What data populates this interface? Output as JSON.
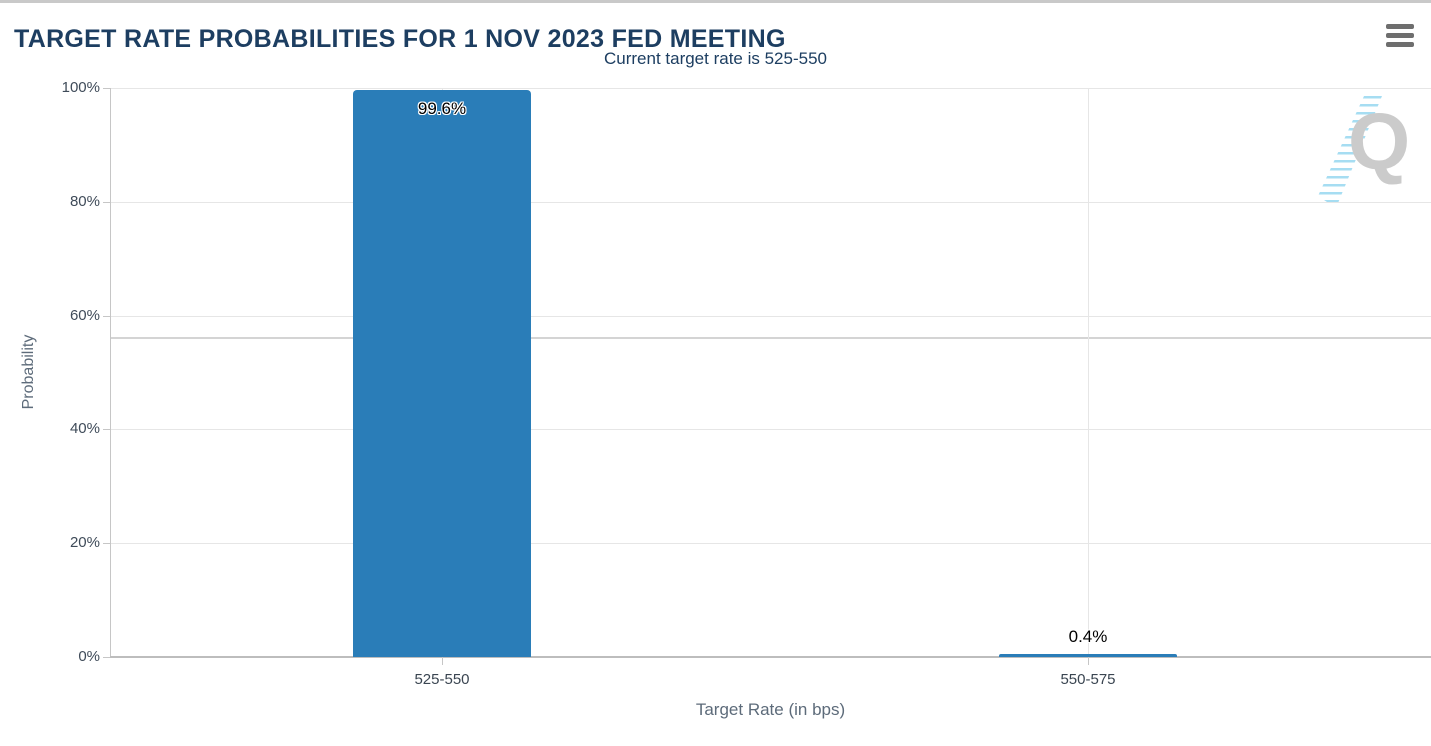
{
  "header": {
    "title": "TARGET RATE PROBABILITIES FOR 1 NOV 2023 FED MEETING",
    "menu_icon": "hamburger-menu"
  },
  "chart_data": {
    "type": "bar",
    "title": "TARGET RATE PROBABILITIES FOR 1 NOV 2023 FED MEETING",
    "subtitle": "Current target rate is 525-550",
    "categories": [
      "525-550",
      "550-575"
    ],
    "values": [
      99.6,
      0.4
    ],
    "value_labels": [
      "99.6%",
      "0.4%"
    ],
    "xlabel": "Target Rate (in bps)",
    "ylabel": "Probability",
    "ylim": [
      0,
      100
    ],
    "yticks": [
      0,
      20,
      40,
      60,
      80,
      100
    ],
    "ytick_labels": [
      "0%",
      "20%",
      "40%",
      "60%",
      "80%",
      "100%"
    ],
    "grid": true,
    "legend": false,
    "bar_color": "#2a7db8"
  },
  "watermark": {
    "letter": "Q",
    "name": "quikstrike-logo"
  },
  "colors": {
    "bar": "#2a7db8",
    "title_text": "#1d3e61",
    "axis_title_text": "#5d6b7a",
    "tick_label_text": "#3f4b59",
    "gridline": "#e6e6e6",
    "axis_line": "#c6c6c6",
    "top_strip": "#c9c9c9",
    "menu_icon": "#6e6e6e",
    "watermark_gray": "#cbcbcb",
    "watermark_blue": "#a6ddf2"
  }
}
